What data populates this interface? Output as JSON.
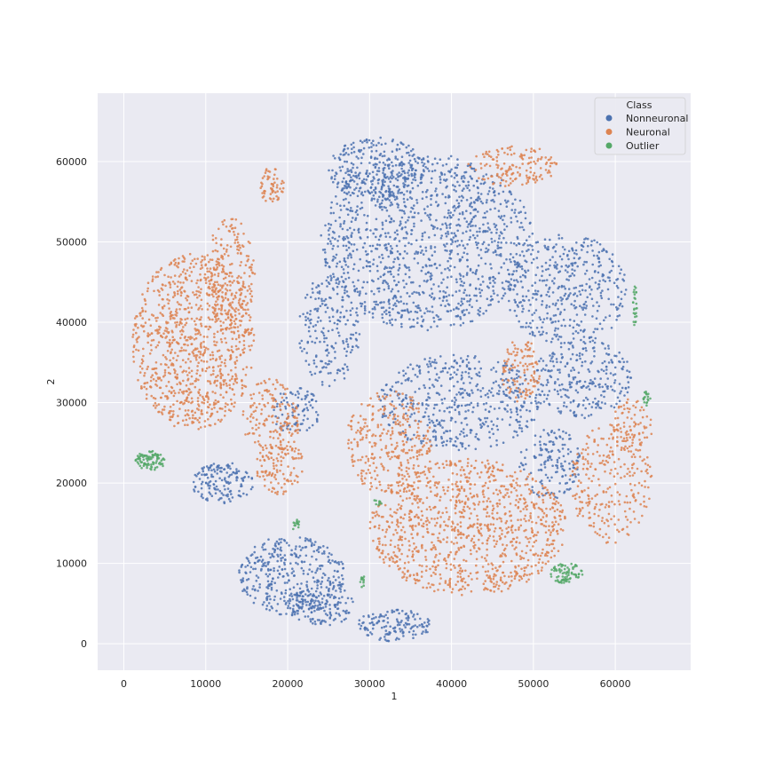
{
  "chart_data": {
    "type": "scatter",
    "xlabel": "1",
    "ylabel": "2",
    "xlim": [
      -3200,
      69200
    ],
    "ylim": [
      -3300,
      68500
    ],
    "xticks": [
      0,
      10000,
      20000,
      30000,
      40000,
      50000,
      60000
    ],
    "yticks": [
      0,
      10000,
      20000,
      30000,
      40000,
      50000,
      60000
    ],
    "grid": true,
    "legend": {
      "title": "Class",
      "position": "top-right",
      "entries": [
        {
          "label": "Nonneuronal",
          "color": "#4c72b0"
        },
        {
          "label": "Neuronal",
          "color": "#dd8452"
        },
        {
          "label": "Outlier",
          "color": "#55a868"
        }
      ]
    },
    "series": [
      {
        "name": "Nonneuronal",
        "color": "#4c72b0",
        "clusters": [
          {
            "cx": 37000,
            "cy": 50000,
            "rx": 13000,
            "ry": 11000,
            "n": 1200
          },
          {
            "cx": 31000,
            "cy": 59000,
            "rx": 6000,
            "ry": 4000,
            "n": 280
          },
          {
            "cx": 54000,
            "cy": 44000,
            "rx": 7500,
            "ry": 7000,
            "n": 420
          },
          {
            "cx": 56000,
            "cy": 33000,
            "rx": 6000,
            "ry": 5000,
            "n": 260
          },
          {
            "cx": 41000,
            "cy": 30000,
            "rx": 10000,
            "ry": 6000,
            "n": 480
          },
          {
            "cx": 52000,
            "cy": 22500,
            "rx": 3800,
            "ry": 4500,
            "n": 150
          },
          {
            "cx": 25000,
            "cy": 39000,
            "rx": 3800,
            "ry": 7000,
            "n": 200
          },
          {
            "cx": 21000,
            "cy": 29000,
            "rx": 3000,
            "ry": 3000,
            "n": 90
          },
          {
            "cx": 12000,
            "cy": 20000,
            "rx": 3800,
            "ry": 2600,
            "n": 150
          },
          {
            "cx": 20500,
            "cy": 8500,
            "rx": 6500,
            "ry": 5000,
            "n": 380
          },
          {
            "cx": 24000,
            "cy": 5000,
            "rx": 4000,
            "ry": 3000,
            "n": 140
          },
          {
            "cx": 33000,
            "cy": 2300,
            "rx": 4500,
            "ry": 2000,
            "n": 140
          }
        ]
      },
      {
        "name": "Neuronal",
        "color": "#dd8452",
        "clusters": [
          {
            "cx": 8500,
            "cy": 37500,
            "rx": 7500,
            "ry": 11000,
            "n": 950
          },
          {
            "cx": 13000,
            "cy": 46000,
            "rx": 3000,
            "ry": 7000,
            "n": 200
          },
          {
            "cx": 18000,
            "cy": 28000,
            "rx": 3500,
            "ry": 5000,
            "n": 160
          },
          {
            "cx": 19000,
            "cy": 22000,
            "rx": 3000,
            "ry": 3500,
            "n": 110
          },
          {
            "cx": 18000,
            "cy": 57000,
            "rx": 1600,
            "ry": 2200,
            "n": 60
          },
          {
            "cx": 47500,
            "cy": 59500,
            "rx": 5500,
            "ry": 2600,
            "n": 150
          },
          {
            "cx": 48500,
            "cy": 34000,
            "rx": 2400,
            "ry": 4000,
            "n": 110
          },
          {
            "cx": 42000,
            "cy": 14500,
            "rx": 12000,
            "ry": 8500,
            "n": 1050
          },
          {
            "cx": 32500,
            "cy": 25000,
            "rx": 5500,
            "ry": 6500,
            "n": 300
          },
          {
            "cx": 59500,
            "cy": 20000,
            "rx": 5000,
            "ry": 7500,
            "n": 260
          },
          {
            "cx": 62000,
            "cy": 27000,
            "rx": 2500,
            "ry": 3500,
            "n": 80
          }
        ]
      },
      {
        "name": "Outlier",
        "color": "#55a868",
        "clusters": [
          {
            "cx": 3300,
            "cy": 22800,
            "rx": 1900,
            "ry": 1200,
            "n": 90
          },
          {
            "cx": 54000,
            "cy": 8800,
            "rx": 2000,
            "ry": 1300,
            "n": 80
          },
          {
            "cx": 62400,
            "cy": 42000,
            "rx": 250,
            "ry": 2500,
            "n": 25
          },
          {
            "cx": 63800,
            "cy": 30500,
            "rx": 500,
            "ry": 900,
            "n": 18
          },
          {
            "cx": 21000,
            "cy": 14800,
            "rx": 500,
            "ry": 700,
            "n": 14
          },
          {
            "cx": 29200,
            "cy": 7700,
            "rx": 400,
            "ry": 700,
            "n": 12
          },
          {
            "cx": 31000,
            "cy": 17500,
            "rx": 500,
            "ry": 600,
            "n": 8
          }
        ]
      }
    ]
  }
}
